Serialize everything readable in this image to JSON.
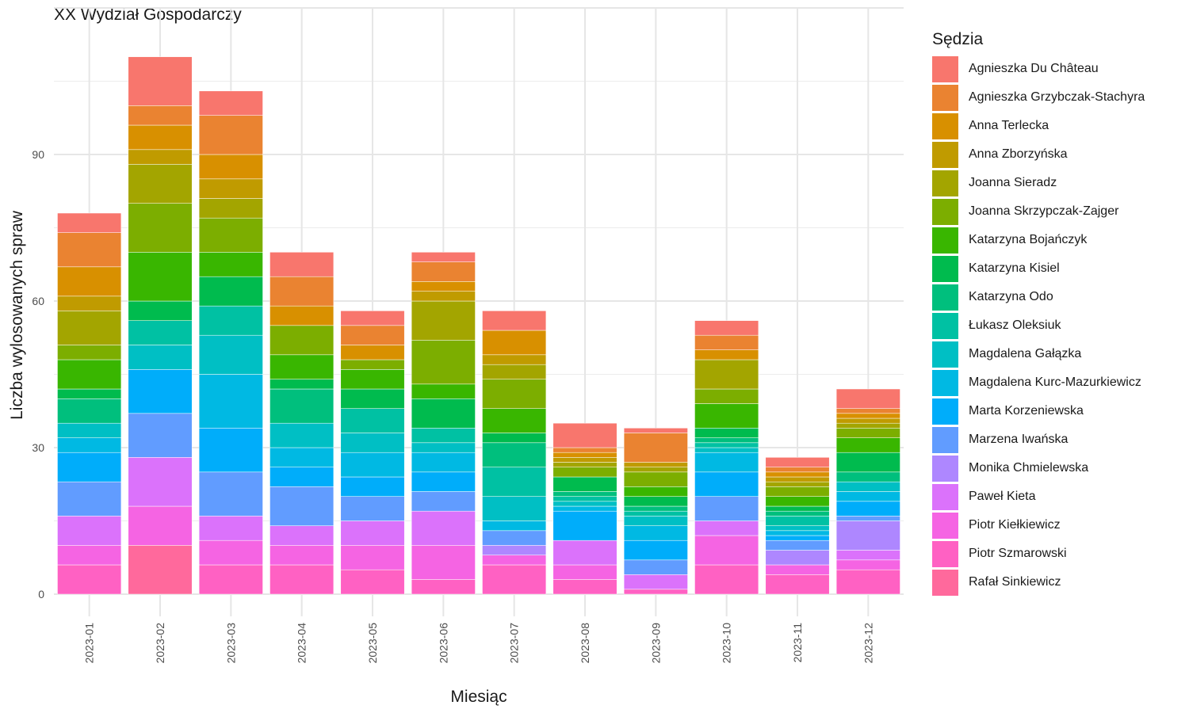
{
  "chart_data": {
    "type": "bar",
    "stacked": true,
    "title": "XX Wydział Gospodarczy",
    "xlabel": "Miesiąc",
    "ylabel": "Liczba wylosowanych spraw",
    "ylim": [
      0,
      120
    ],
    "yticks": [
      0,
      30,
      60,
      90
    ],
    "grid": true,
    "legend_title": "Sędzia",
    "legend_position": "right",
    "categories": [
      "2023-01",
      "2023-02",
      "2023-03",
      "2023-04",
      "2023-05",
      "2023-06",
      "2023-07",
      "2023-08",
      "2023-09",
      "2023-10",
      "2023-11",
      "2023-12"
    ],
    "series": [
      {
        "name": "Agnieszka Du Château",
        "color": "#F8766D",
        "values": [
          4,
          10,
          5,
          5,
          3,
          2,
          4,
          5,
          1,
          3,
          2,
          4
        ]
      },
      {
        "name": "Agnieszka Grzybczak-Stachyra",
        "color": "#EA8331",
        "values": [
          7,
          4,
          8,
          6,
          4,
          4,
          0,
          1,
          6,
          3,
          1,
          1
        ]
      },
      {
        "name": "Anna Terlecka",
        "color": "#D89000",
        "values": [
          6,
          5,
          5,
          4,
          3,
          2,
          5,
          1,
          0,
          2,
          1,
          1
        ]
      },
      {
        "name": "Anna Zborzyńska",
        "color": "#C09B00",
        "values": [
          3,
          3,
          4,
          0,
          0,
          2,
          2,
          1,
          1,
          0,
          1,
          1
        ]
      },
      {
        "name": "Joanna Sieradz",
        "color": "#A3A500",
        "values": [
          7,
          8,
          4,
          0,
          0,
          8,
          3,
          1,
          1,
          6,
          1,
          1
        ]
      },
      {
        "name": "Joanna Skrzypczak-Zajger",
        "color": "#7CAE00",
        "values": [
          3,
          10,
          7,
          6,
          2,
          9,
          6,
          2,
          3,
          3,
          2,
          2
        ]
      },
      {
        "name": "Katarzyna Bojańczyk",
        "color": "#39B600",
        "values": [
          6,
          10,
          5,
          5,
          4,
          3,
          5,
          0,
          2,
          5,
          2,
          3
        ]
      },
      {
        "name": "Katarzyna Kisiel",
        "color": "#00BB4E",
        "values": [
          2,
          4,
          6,
          2,
          4,
          6,
          2,
          3,
          2,
          2,
          1,
          4
        ]
      },
      {
        "name": "Katarzyna Odo",
        "color": "#00BF7D",
        "values": [
          5,
          0,
          0,
          7,
          0,
          0,
          5,
          1,
          1,
          1,
          1,
          2
        ]
      },
      {
        "name": "Łukasz Oleksiuk",
        "color": "#00C1A3",
        "values": [
          0,
          5,
          6,
          0,
          5,
          3,
          6,
          1,
          1,
          1,
          2,
          0
        ]
      },
      {
        "name": "Magdalena Gałązka",
        "color": "#00BFC4",
        "values": [
          3,
          5,
          8,
          5,
          4,
          2,
          5,
          1,
          2,
          1,
          1,
          2
        ]
      },
      {
        "name": "Magdalena Kurc-Mazurkiewicz",
        "color": "#00B9E3",
        "values": [
          3,
          0,
          11,
          4,
          5,
          4,
          2,
          1,
          3,
          4,
          1,
          2
        ]
      },
      {
        "name": "Marta Korzeniewska",
        "color": "#00ADFA",
        "values": [
          6,
          9,
          9,
          4,
          4,
          4,
          0,
          6,
          4,
          5,
          1,
          3
        ]
      },
      {
        "name": "Marzena Iwańska",
        "color": "#619CFF",
        "values": [
          7,
          9,
          9,
          8,
          5,
          4,
          3,
          0,
          3,
          5,
          2,
          1
        ]
      },
      {
        "name": "Monika Chmielewska",
        "color": "#AE87FF",
        "values": [
          0,
          0,
          0,
          0,
          0,
          0,
          2,
          0,
          0,
          0,
          3,
          6
        ]
      },
      {
        "name": "Paweł Kieta",
        "color": "#DB72FB",
        "values": [
          6,
          10,
          5,
          4,
          5,
          7,
          0,
          5,
          3,
          3,
          0,
          2
        ]
      },
      {
        "name": "Piotr Kiełkiewicz",
        "color": "#F564E3",
        "values": [
          4,
          8,
          5,
          4,
          5,
          7,
          2,
          3,
          0,
          6,
          2,
          2
        ]
      },
      {
        "name": "Piotr Szmarowski",
        "color": "#FF61C3",
        "values": [
          6,
          0,
          6,
          6,
          5,
          3,
          6,
          3,
          1,
          6,
          4,
          5
        ]
      },
      {
        "name": "Rafał Sinkiewicz",
        "color": "#FF699C",
        "values": [
          0,
          10,
          0,
          0,
          0,
          0,
          0,
          0,
          0,
          0,
          0,
          0
        ]
      }
    ]
  }
}
